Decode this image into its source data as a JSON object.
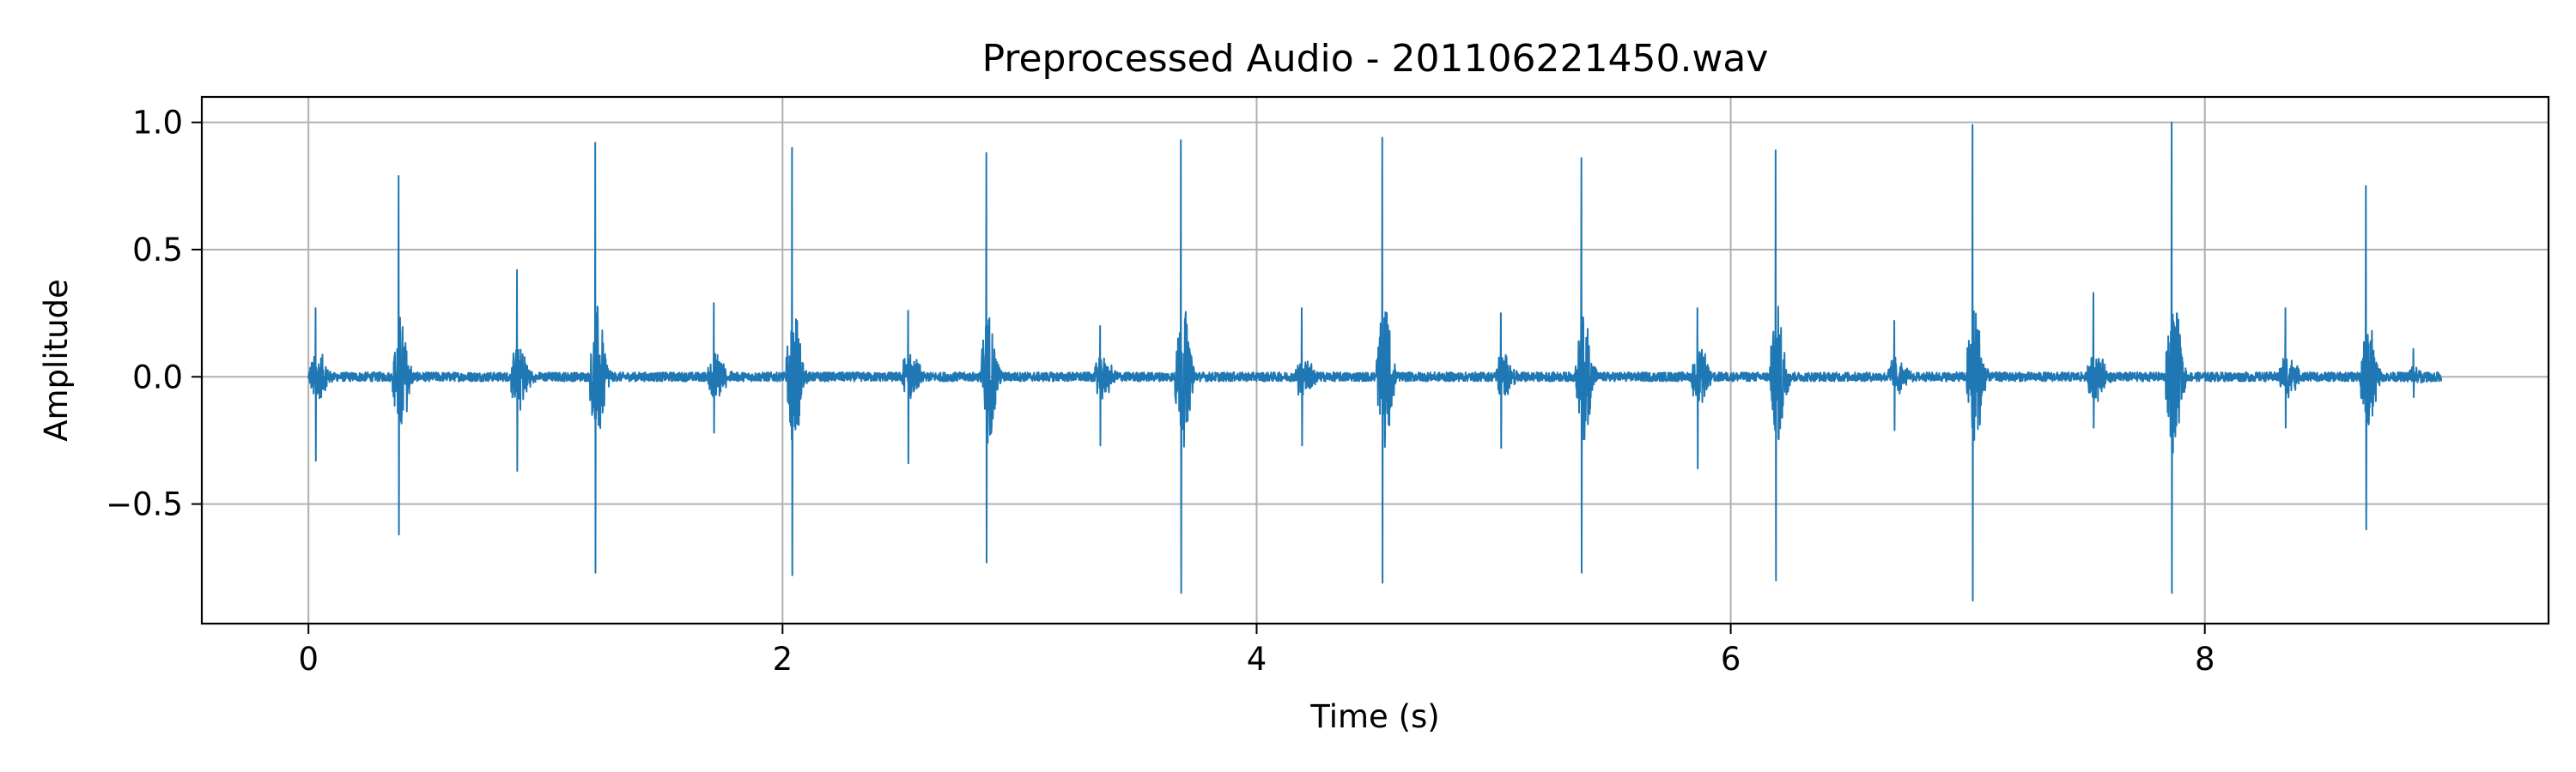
{
  "chart_data": {
    "type": "line",
    "title": "Preprocessed Audio - 201106221450.wav",
    "xlabel": "Time (s)",
    "ylabel": "Amplitude",
    "xlim": [
      -0.45,
      9.45
    ],
    "ylim": [
      -0.97,
      1.1
    ],
    "x_ticks": [
      0,
      2,
      4,
      6,
      8
    ],
    "x_tick_labels": [
      "0",
      "2",
      "4",
      "6",
      "8"
    ],
    "y_ticks": [
      -0.5,
      0.0,
      0.5,
      1.0
    ],
    "y_tick_labels": [
      "−0.5",
      "0.0",
      "0.5",
      "1.0"
    ],
    "grid": true,
    "duration": 9.0,
    "line_color": "#1f77b4",
    "grid_color": "#b0b0b0",
    "series": [
      {
        "events": [
          {
            "t": 0.03,
            "pos": 0.27,
            "neg": -0.33,
            "kind": "s2"
          },
          {
            "t": 0.38,
            "pos": 0.79,
            "neg": -0.62,
            "kind": "s1"
          },
          {
            "t": 0.88,
            "pos": 0.42,
            "neg": -0.37,
            "kind": "s2"
          },
          {
            "t": 1.21,
            "pos": 0.92,
            "neg": -0.77,
            "kind": "s1"
          },
          {
            "t": 1.71,
            "pos": 0.29,
            "neg": -0.22,
            "kind": "s2"
          },
          {
            "t": 2.04,
            "pos": 0.9,
            "neg": -0.78,
            "kind": "s1"
          },
          {
            "t": 2.53,
            "pos": 0.26,
            "neg": -0.34,
            "kind": "s2"
          },
          {
            "t": 2.86,
            "pos": 0.88,
            "neg": -0.73,
            "kind": "s1"
          },
          {
            "t": 3.34,
            "pos": 0.2,
            "neg": -0.27,
            "kind": "s2"
          },
          {
            "t": 3.68,
            "pos": 0.93,
            "neg": -0.85,
            "kind": "s1"
          },
          {
            "t": 4.19,
            "pos": 0.27,
            "neg": -0.27,
            "kind": "s2"
          },
          {
            "t": 4.53,
            "pos": 0.94,
            "neg": -0.81,
            "kind": "s1"
          },
          {
            "t": 5.03,
            "pos": 0.25,
            "neg": -0.28,
            "kind": "s2"
          },
          {
            "t": 5.37,
            "pos": 0.86,
            "neg": -0.77,
            "kind": "s1"
          },
          {
            "t": 5.86,
            "pos": 0.27,
            "neg": -0.36,
            "kind": "s2"
          },
          {
            "t": 6.19,
            "pos": 0.89,
            "neg": -0.8,
            "kind": "s1"
          },
          {
            "t": 6.69,
            "pos": 0.22,
            "neg": -0.21,
            "kind": "s2"
          },
          {
            "t": 7.02,
            "pos": 0.99,
            "neg": -0.88,
            "kind": "s1"
          },
          {
            "t": 7.53,
            "pos": 0.33,
            "neg": -0.2,
            "kind": "s2"
          },
          {
            "t": 7.86,
            "pos": 1.0,
            "neg": -0.85,
            "kind": "s1"
          },
          {
            "t": 8.34,
            "pos": 0.27,
            "neg": -0.2,
            "kind": "s2"
          },
          {
            "t": 8.68,
            "pos": 0.75,
            "neg": -0.6,
            "kind": "s1"
          },
          {
            "t": 8.88,
            "pos": 0.11,
            "neg": -0.08,
            "kind": "s2"
          }
        ]
      }
    ]
  }
}
